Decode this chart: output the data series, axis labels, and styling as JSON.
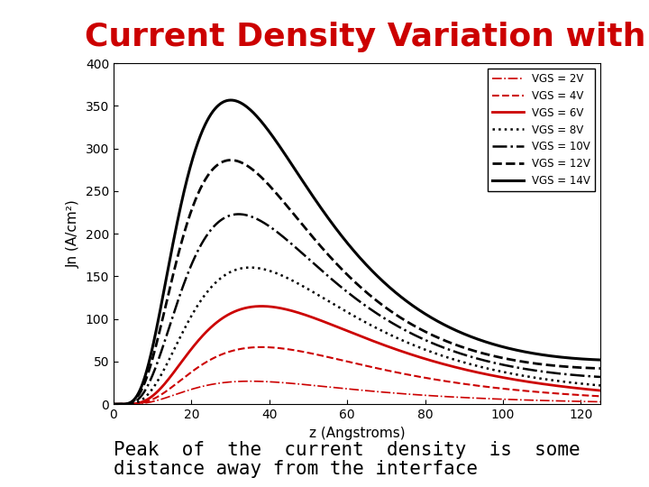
{
  "title": "Current Density Variation with Depth",
  "xlabel": "z (Angstroms)",
  "ylabel": "Jn (A/cm²)",
  "xlim": [
    0,
    125
  ],
  "ylim": [
    0,
    400
  ],
  "xticks": [
    0,
    20,
    40,
    60,
    80,
    100,
    120
  ],
  "yticks": [
    0,
    50,
    100,
    150,
    200,
    250,
    300,
    350,
    400
  ],
  "background_color": "#ffffff",
  "title_color": "#cc0000",
  "curves": [
    {
      "label": "VGS = 2V",
      "color": "#cc0000",
      "linestyle": "dashdot",
      "linewidth": 1.2,
      "peak_x": 35,
      "peak_y": 27,
      "end_y": 2
    },
    {
      "label": "VGS = 4V",
      "color": "#cc0000",
      "linestyle": "dashed",
      "linewidth": 1.5,
      "peak_x": 38,
      "peak_y": 67,
      "end_y": 6
    },
    {
      "label": "VGS = 6V",
      "color": "#cc0000",
      "linestyle": "solid",
      "linewidth": 2.0,
      "peak_x": 38,
      "peak_y": 115,
      "end_y": 12
    },
    {
      "label": "VGS = 8V",
      "color": "#000000",
      "linestyle": "dotted",
      "linewidth": 1.8,
      "peak_x": 35,
      "peak_y": 160,
      "end_y": 22
    },
    {
      "label": "VGS = 10V",
      "color": "#000000",
      "linestyle": "dashdot",
      "linewidth": 1.8,
      "peak_x": 32,
      "peak_y": 222,
      "end_y": 32
    },
    {
      "label": "VGS = 12V",
      "color": "#000000",
      "linestyle": "dashed",
      "linewidth": 2.0,
      "peak_x": 30,
      "peak_y": 285,
      "end_y": 42
    },
    {
      "label": "VGS = 14V",
      "color": "#000000",
      "linestyle": "solid",
      "linewidth": 2.2,
      "peak_x": 30,
      "peak_y": 355,
      "end_y": 52
    }
  ],
  "subtitle_line1": "Peak  of  the  current  density  is  some",
  "subtitle_line2": "distance away from the interface",
  "subtitle_fontsize": 15,
  "title_fontsize": 26
}
